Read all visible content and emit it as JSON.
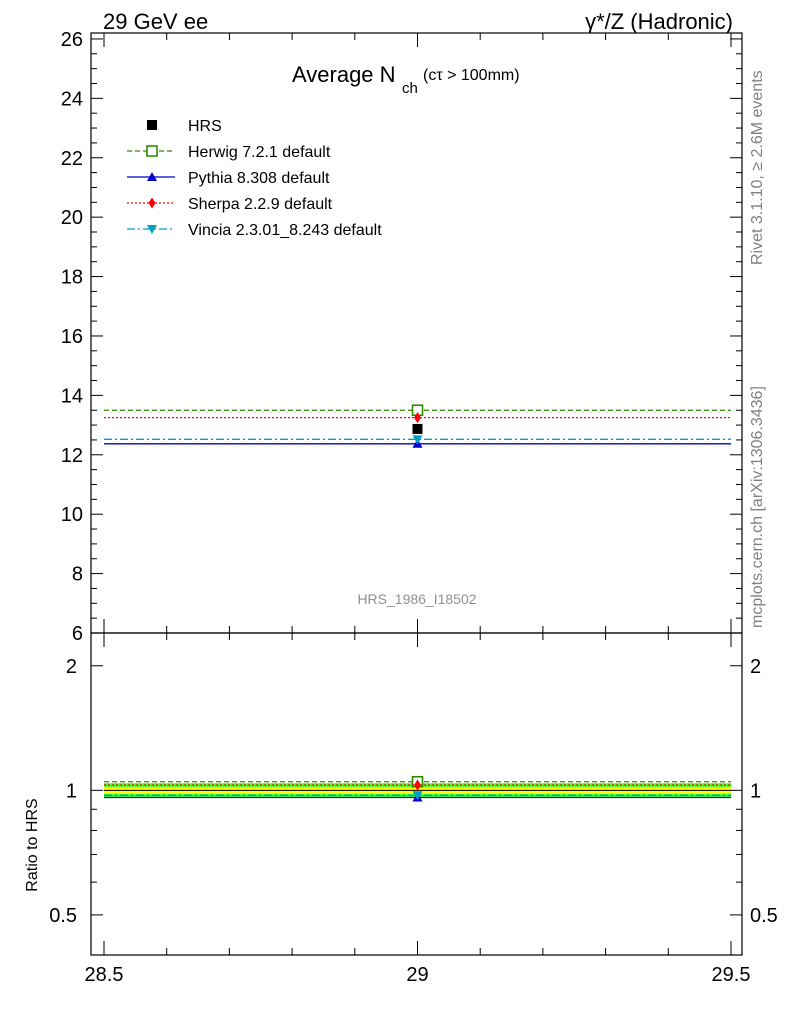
{
  "header": {
    "left": "29 GeV ee",
    "right": "γ*/Z (Hadronic)"
  },
  "side_labels": {
    "top": "Rivet 3.1.10, ≥ 2.6M events",
    "bottom": "mcplots.cern.ch [arXiv:1306.3436]"
  },
  "analysis_id": "HRS_1986_I18502",
  "colors": {
    "hrs": "#000000",
    "herwig": "#2e8b00",
    "pythia": "#0000cc",
    "sherpa": "#ff0000",
    "vincia": "#00a0c0",
    "band_inner": "#ffff00",
    "band_outer": "#33ff33"
  },
  "chart_data": [
    {
      "type": "line",
      "title_main": "Average N",
      "title_sub": "ch",
      "title_extra": "(cτ > 100mm)",
      "xlim": [
        28.5,
        29.5
      ],
      "ylim": [
        6,
        26.2
      ],
      "yticks": [
        6,
        8,
        10,
        12,
        14,
        16,
        18,
        20,
        22,
        24,
        26
      ],
      "legend": {
        "position": "top-left",
        "entries": [
          "HRS",
          "Herwig 7.2.1 default",
          "Pythia 8.308 default",
          "Sherpa 2.2.9 default",
          "Vincia 2.3.01_8.243 default"
        ]
      },
      "series": [
        {
          "name": "HRS",
          "x": [
            29
          ],
          "y": [
            12.87
          ],
          "xerr": [
            0.5
          ],
          "marker": "square-filled",
          "style": "points"
        },
        {
          "name": "Herwig 7.2.1 default",
          "x": [
            29
          ],
          "y": [
            13.5
          ],
          "xerr": [
            0.5
          ],
          "marker": "square-open",
          "style": "dashed"
        },
        {
          "name": "Pythia 8.308 default",
          "x": [
            29
          ],
          "y": [
            12.37
          ],
          "xerr": [
            0.5
          ],
          "marker": "triangle-up",
          "style": "solid"
        },
        {
          "name": "Sherpa 2.2.9 default",
          "x": [
            29
          ],
          "y": [
            13.25
          ],
          "xerr": [
            0.5
          ],
          "marker": "diamond",
          "style": "dotted"
        },
        {
          "name": "Vincia 2.3.01_8.243 default",
          "x": [
            29
          ],
          "y": [
            12.52
          ],
          "xerr": [
            0.5
          ],
          "marker": "triangle-down",
          "style": "dashdot"
        }
      ]
    },
    {
      "type": "line",
      "ylabel": "Ratio to HRS",
      "xlim": [
        28.5,
        29.5
      ],
      "ylim": [
        0.4,
        2.4
      ],
      "log_y": true,
      "ytick_labels": [
        {
          "value": 0.5,
          "label": "0.5"
        },
        {
          "value": 1,
          "label": "1"
        },
        {
          "value": 2,
          "label": "2"
        }
      ],
      "xtick_labels": [
        {
          "value": 28.5,
          "label": "28.5"
        },
        {
          "value": 29,
          "label": "29"
        },
        {
          "value": 29.5,
          "label": "29.5"
        }
      ],
      "band": {
        "inner": [
          0.98,
          1.02
        ],
        "outer": [
          0.96,
          1.04
        ]
      },
      "series": [
        {
          "name": "Herwig 7.2.1 default",
          "x": [
            29
          ],
          "y": [
            1.049
          ],
          "marker": "square-open",
          "style": "dashed"
        },
        {
          "name": "Pythia 8.308 default",
          "x": [
            29
          ],
          "y": [
            0.961
          ],
          "marker": "triangle-up",
          "style": "solid"
        },
        {
          "name": "Sherpa 2.2.9 default",
          "x": [
            29
          ],
          "y": [
            1.03
          ],
          "marker": "diamond",
          "style": "dotted"
        },
        {
          "name": "Vincia 2.3.01_8.243 default",
          "x": [
            29
          ],
          "y": [
            0.973
          ],
          "marker": "triangle-down",
          "style": "dashdot"
        }
      ]
    }
  ]
}
